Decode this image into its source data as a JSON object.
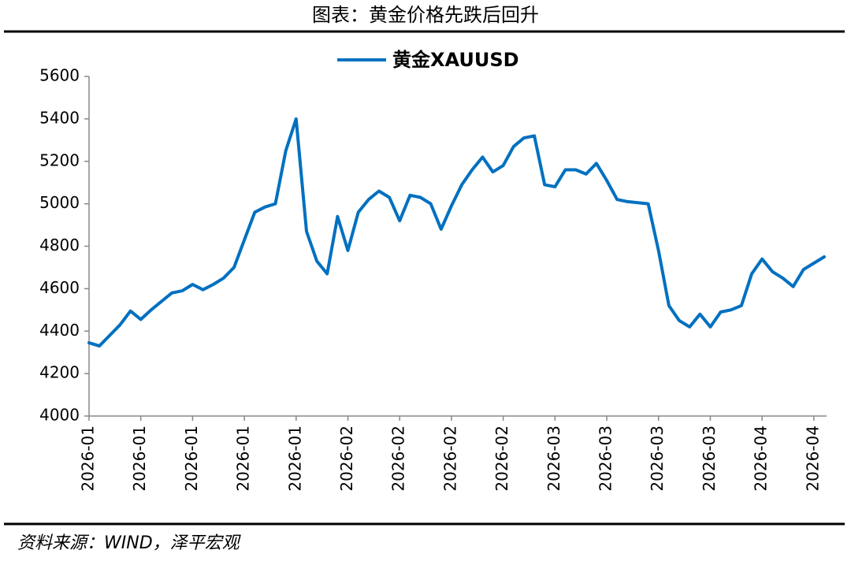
{
  "chart_data": {
    "type": "line",
    "title": "图表：黄金价格先跌后回升",
    "source": "资料来源：WIND，泽平宏观",
    "categories": [
      "2026-01",
      null,
      null,
      null,
      null,
      "2026-01",
      null,
      null,
      null,
      null,
      "2026-01",
      null,
      null,
      null,
      null,
      "2026-01",
      null,
      null,
      null,
      null,
      "2026-01",
      null,
      null,
      null,
      null,
      "2026-02",
      null,
      null,
      null,
      null,
      "2026-02",
      null,
      null,
      null,
      null,
      "2026-02",
      null,
      null,
      null,
      null,
      "2026-02",
      null,
      null,
      null,
      null,
      "2026-03",
      null,
      null,
      null,
      null,
      "2026-03",
      null,
      null,
      null,
      null,
      "2026-03",
      null,
      null,
      null,
      null,
      "2026-03",
      null,
      null,
      null,
      null,
      "2026-04",
      null,
      null,
      null,
      null,
      "2026-04",
      null
    ],
    "series": [
      {
        "name": "黄金XAUUSD",
        "color": "#0070c0",
        "values": [
          4345,
          4330,
          4380,
          4430,
          4495,
          4455,
          4500,
          4540,
          4580,
          4590,
          4620,
          4595,
          4620,
          4650,
          4700,
          4830,
          4960,
          4985,
          5000,
          5250,
          5400,
          4870,
          4730,
          4670,
          4940,
          4780,
          4960,
          5020,
          5060,
          5030,
          4920,
          5040,
          5030,
          5000,
          4880,
          4990,
          5090,
          5160,
          5220,
          5150,
          5180,
          5270,
          5310,
          5320,
          5090,
          5080,
          5160,
          5160,
          5140,
          5190,
          5110,
          5020,
          5010,
          5005,
          5000,
          4780,
          4520,
          4450,
          4420,
          4480,
          4420,
          4490,
          4500,
          4520,
          4670,
          4740,
          4680,
          4650,
          4610,
          4690,
          4720,
          4750
        ]
      }
    ],
    "ylim": [
      4000,
      5600
    ],
    "yticks": [
      4000,
      4200,
      4400,
      4600,
      4800,
      5000,
      5200,
      5400,
      5600
    ],
    "legend": "top"
  }
}
